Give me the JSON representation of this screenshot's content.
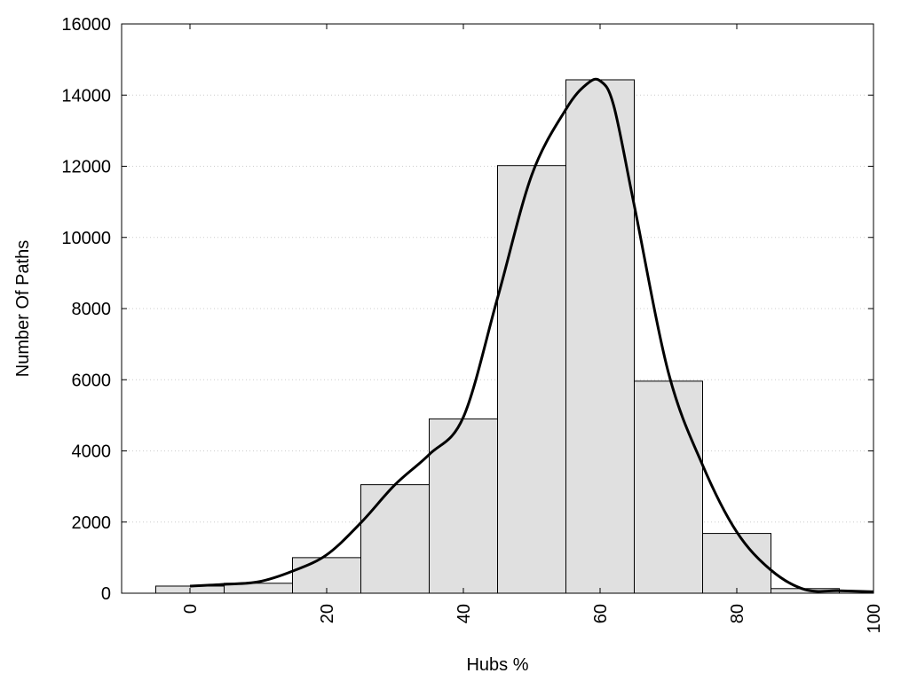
{
  "chart_data": {
    "type": "bar",
    "xlabel": "Hubs %",
    "ylabel": "Number Of Paths",
    "xlim": [
      -10,
      100
    ],
    "ylim": [
      0,
      16000
    ],
    "x_ticks": [
      "0",
      "20",
      "40",
      "60",
      "80",
      "100"
    ],
    "y_ticks": [
      "0",
      "2000",
      "4000",
      "6000",
      "8000",
      "10000",
      "12000",
      "14000",
      "16000"
    ],
    "grid": "horizontal dotted",
    "bin_width": 10,
    "bins": [
      0,
      10,
      20,
      30,
      40,
      50,
      60,
      70,
      80,
      90
    ],
    "values": [
      200,
      280,
      1000,
      3050,
      4900,
      12020,
      14430,
      5960,
      1680,
      130
    ],
    "curve": {
      "x": [
        0,
        5,
        10,
        15,
        20,
        25,
        30,
        35,
        40,
        45,
        50,
        55,
        58,
        60,
        62,
        65,
        70,
        75,
        80,
        85,
        90,
        95,
        100
      ],
      "y": [
        200,
        250,
        320,
        620,
        1080,
        1980,
        3050,
        3900,
        4950,
        8300,
        11750,
        13600,
        14300,
        14400,
        13700,
        10900,
        6200,
        3600,
        1720,
        650,
        100,
        70,
        40
      ]
    },
    "colors": {
      "bar_fill": "#e0e0e0",
      "bar_stroke": "#000000",
      "curve": "#000000",
      "grid": "#cccccc"
    }
  }
}
